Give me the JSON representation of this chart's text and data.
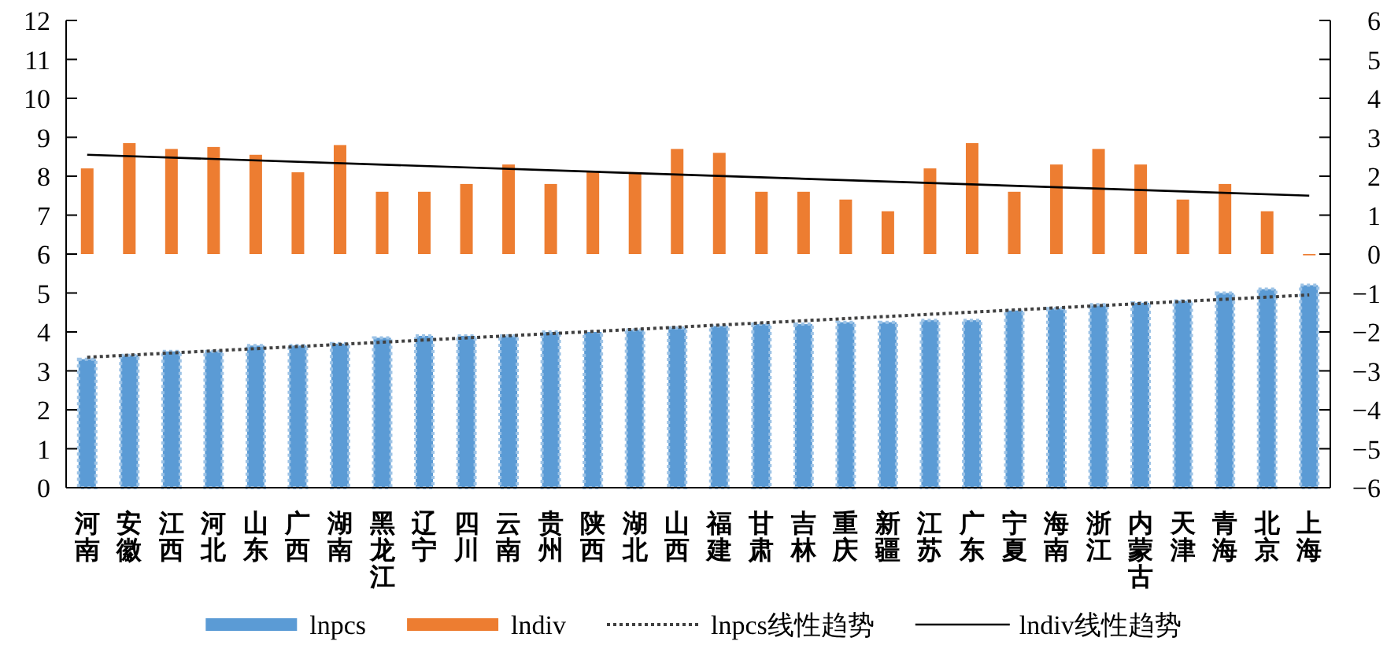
{
  "chart_data": {
    "type": "bar",
    "categories": [
      "河南",
      "安徽",
      "江西",
      "河北",
      "山东",
      "广西",
      "湖南",
      "黑龙江",
      "辽宁",
      "四川",
      "云南",
      "贵州",
      "陕西",
      "湖北",
      "山西",
      "福建",
      "甘肃",
      "吉林",
      "重庆",
      "新疆",
      "江苏",
      "广东",
      "宁夏",
      "海南",
      "浙江",
      "内蒙古",
      "天津",
      "青海",
      "北京",
      "上海"
    ],
    "series": [
      {
        "name": "lnpcs",
        "color": "#5b9bd5",
        "values": [
          3.3,
          3.4,
          3.5,
          3.5,
          3.65,
          3.65,
          3.7,
          3.85,
          3.9,
          3.9,
          3.9,
          4.0,
          4.0,
          4.05,
          4.1,
          4.15,
          4.2,
          4.2,
          4.25,
          4.25,
          4.3,
          4.3,
          4.55,
          4.6,
          4.7,
          4.75,
          4.8,
          5.0,
          5.1,
          5.2
        ]
      },
      {
        "name": "lndiv",
        "color": "#ed7d31",
        "axis": "y2",
        "values": [
          2.2,
          2.85,
          2.7,
          2.75,
          2.55,
          2.1,
          2.8,
          1.6,
          1.6,
          1.8,
          2.3,
          1.8,
          2.1,
          2.1,
          2.7,
          2.6,
          1.6,
          1.6,
          1.4,
          1.1,
          2.2,
          2.85,
          1.6,
          2.3,
          2.7,
          2.3,
          1.4,
          1.8,
          1.1,
          0
        ]
      },
      {
        "name": "lnpcs线性趋势",
        "type": "line",
        "color": "#404040",
        "line_style": "dotted",
        "x": [
          "河南",
          "上海"
        ],
        "values": [
          3.35,
          4.95
        ]
      },
      {
        "name": "lndiv线性趋势",
        "type": "line",
        "color": "#000000",
        "line_style": "solid",
        "axis": "y2",
        "x": [
          "河南",
          "上海"
        ],
        "values": [
          2.55,
          1.5
        ]
      }
    ],
    "ylim": [
      0,
      12
    ],
    "yticks": [
      0,
      1,
      2,
      3,
      4,
      5,
      6,
      7,
      8,
      9,
      10,
      11,
      12
    ],
    "y2lim": [
      -6,
      6
    ],
    "y2ticks": [
      {
        "value": -6,
        "label": "−6"
      },
      {
        "value": -5,
        "label": "−5"
      },
      {
        "value": -4,
        "label": "−4"
      },
      {
        "value": -3,
        "label": "−3"
      },
      {
        "value": -2,
        "label": "−2"
      },
      {
        "value": -1,
        "label": "−1"
      },
      0,
      1,
      2,
      3,
      4,
      5,
      6
    ],
    "legend": "bottom",
    "grid": false
  }
}
